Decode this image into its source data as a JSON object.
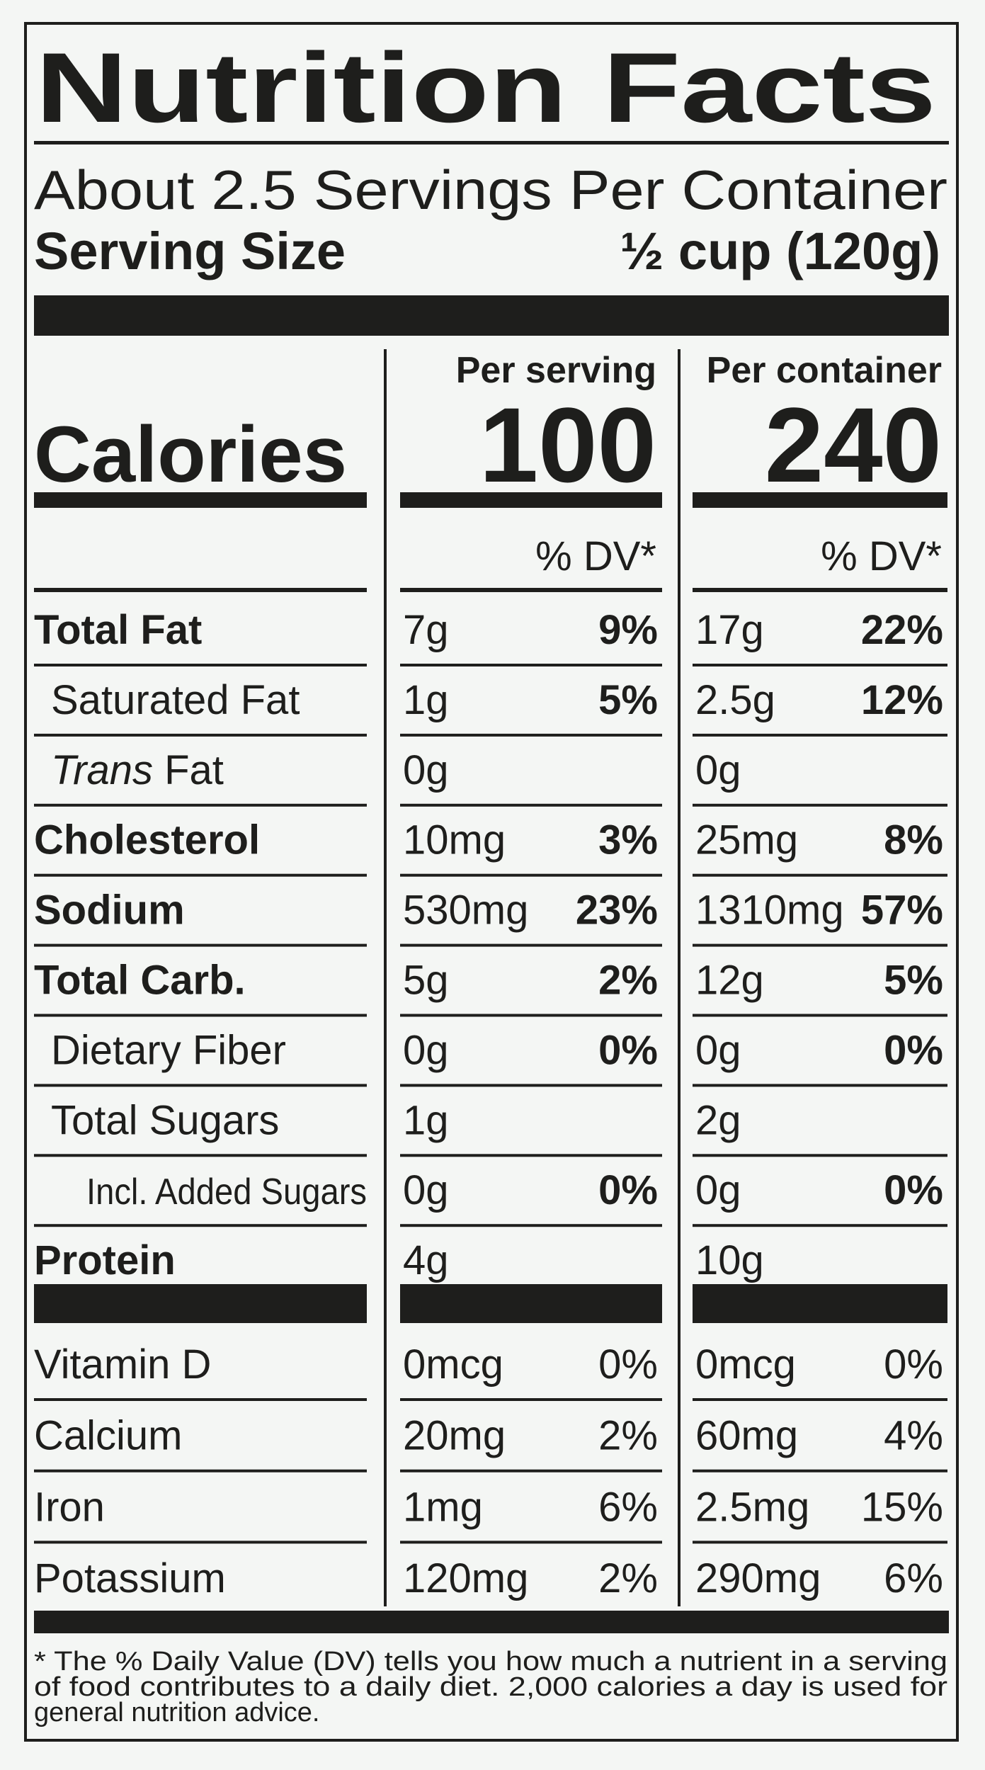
{
  "title": "Nutrition Facts",
  "servings": "About 2.5 Servings Per Container",
  "serving_size": {
    "label": "Serving Size",
    "value": "½ cup (120g)"
  },
  "calories": {
    "label": "Calories",
    "columns": [
      {
        "header": "Per serving",
        "value": "100",
        "dv_header": "% DV*"
      },
      {
        "header": "Per container",
        "value": "240",
        "dv_header": "% DV*"
      }
    ]
  },
  "nutrients": [
    {
      "name": "Total Fat",
      "cells": [
        [
          "7g",
          "9%"
        ],
        [
          "17g",
          "22%"
        ]
      ]
    },
    {
      "name": "Saturated Fat",
      "cells": [
        [
          "1g",
          "5%"
        ],
        [
          "2.5g",
          "12%"
        ]
      ]
    },
    {
      "name_italic": "Trans",
      "name": "Fat",
      "cells": [
        [
          "0g"
        ],
        [
          "0g"
        ]
      ]
    },
    {
      "name": "Cholesterol",
      "cells": [
        [
          "10mg",
          "3%"
        ],
        [
          "25mg",
          "8%"
        ]
      ]
    },
    {
      "name": "Sodium",
      "cells": [
        [
          "530mg",
          "23%"
        ],
        [
          "1310mg",
          "57%"
        ]
      ]
    },
    {
      "name": "Total Carb.",
      "cells": [
        [
          "5g",
          "2%"
        ],
        [
          "12g",
          "5%"
        ]
      ]
    },
    {
      "name": "Dietary Fiber",
      "cells": [
        [
          "0g",
          "0%"
        ],
        [
          "0g",
          "0%"
        ]
      ]
    },
    {
      "name": "Total Sugars",
      "cells": [
        [
          "1g"
        ],
        [
          "2g"
        ]
      ]
    },
    {
      "name": "Incl. Added Sugars",
      "cells": [
        [
          "0g",
          "0%"
        ],
        [
          "0g",
          "0%"
        ]
      ]
    },
    {
      "name": "Protein",
      "cells": [
        [
          "4g"
        ],
        [
          "10g"
        ]
      ]
    }
  ],
  "vitamins": [
    {
      "name": "Vitamin D",
      "cells": [
        [
          "0mcg",
          "0%"
        ],
        [
          "0mcg",
          "0%"
        ]
      ]
    },
    {
      "name": "Calcium",
      "cells": [
        [
          "20mg",
          "2%"
        ],
        [
          "60mg",
          "4%"
        ]
      ]
    },
    {
      "name": "Iron",
      "cells": [
        [
          "1mg",
          "6%"
        ],
        [
          "2.5mg",
          "15%"
        ]
      ]
    },
    {
      "name": "Potassium",
      "cells": [
        [
          "120mg",
          "2%"
        ],
        [
          "290mg",
          "6%"
        ]
      ]
    }
  ],
  "footnote": [
    "* The % Daily Value (DV) tells you how much a nutrient in a serving",
    "of food contributes to a daily diet. 2,000 calories a day is used for",
    "general nutrition advice."
  ]
}
